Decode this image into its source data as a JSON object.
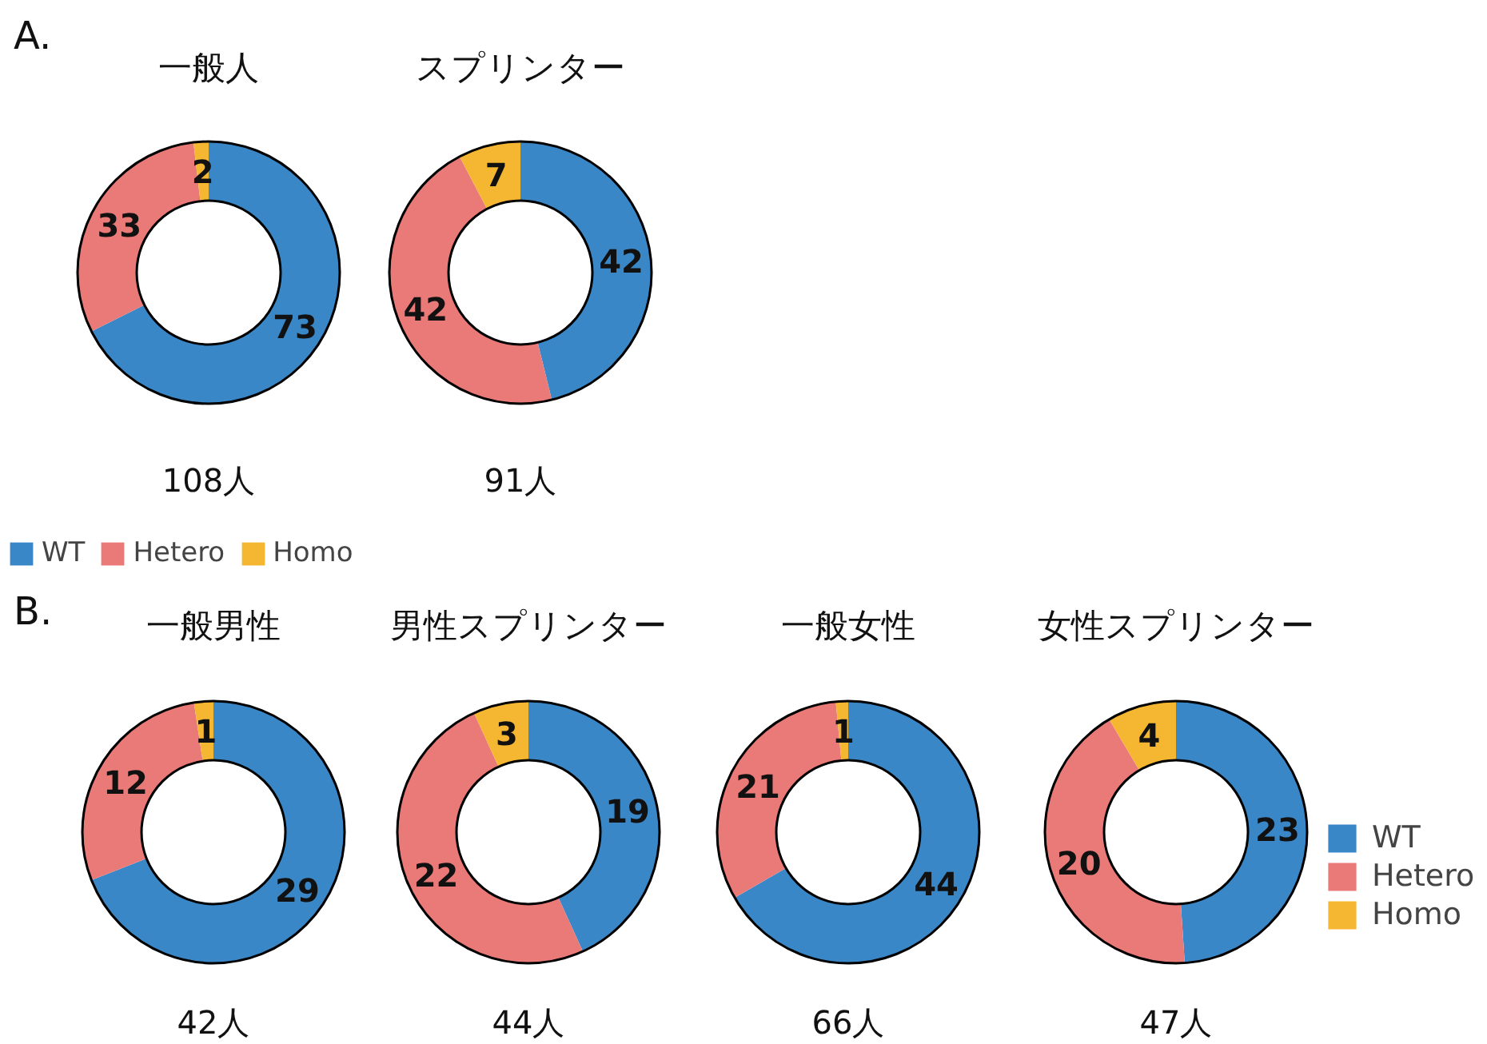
{
  "chart_data": [
    {
      "type": "donut",
      "title": "一般人",
      "subtitle": "108人",
      "annotations": [
        "A."
      ],
      "categories": [
        "WT",
        "Hetero",
        "Homo"
      ],
      "values": [
        73,
        33,
        2
      ],
      "colors": [
        "#3a87c8",
        "#ea7a78",
        "#f5b731"
      ],
      "data_labels": true,
      "legend": "bottom"
    },
    {
      "type": "donut",
      "title": "スプリンター",
      "subtitle": "91人",
      "categories": [
        null,
        null,
        null
      ],
      "values": [
        42,
        42,
        7
      ],
      "colors": [
        "#3a87c8",
        "#ea7a78",
        "#f5b731"
      ],
      "data_labels": true
    },
    {
      "type": "donut",
      "title": "一般男性",
      "subtitle": "42人",
      "annotations": [
        "B."
      ],
      "categories": [
        null,
        null,
        null
      ],
      "values": [
        29,
        12,
        1
      ],
      "colors": [
        "#3a87c8",
        "#ea7a78",
        "#f5b731"
      ],
      "data_labels": true
    },
    {
      "type": "donut",
      "title": "男性スプリンター",
      "subtitle": "44人",
      "categories": [
        null,
        null,
        null
      ],
      "values": [
        19,
        22,
        3
      ],
      "colors": [
        "#3a87c8",
        "#ea7a78",
        "#f5b731"
      ],
      "data_labels": true
    },
    {
      "type": "donut",
      "title": "一般女性",
      "subtitle": "66人",
      "categories": [
        null,
        null,
        null
      ],
      "values": [
        44,
        21,
        1
      ],
      "colors": [
        "#3a87c8",
        "#ea7a78",
        "#f5b731"
      ],
      "data_labels": true
    },
    {
      "type": "donut",
      "title": "女性スプリンター",
      "subtitle": "47人",
      "categories": [
        "WT",
        "Hetero",
        "Homo"
      ],
      "values": [
        23,
        20,
        4
      ],
      "colors": [
        "#3a87c8",
        "#ea7a78",
        "#f5b731"
      ],
      "data_labels": true,
      "legend": "right"
    }
  ]
}
